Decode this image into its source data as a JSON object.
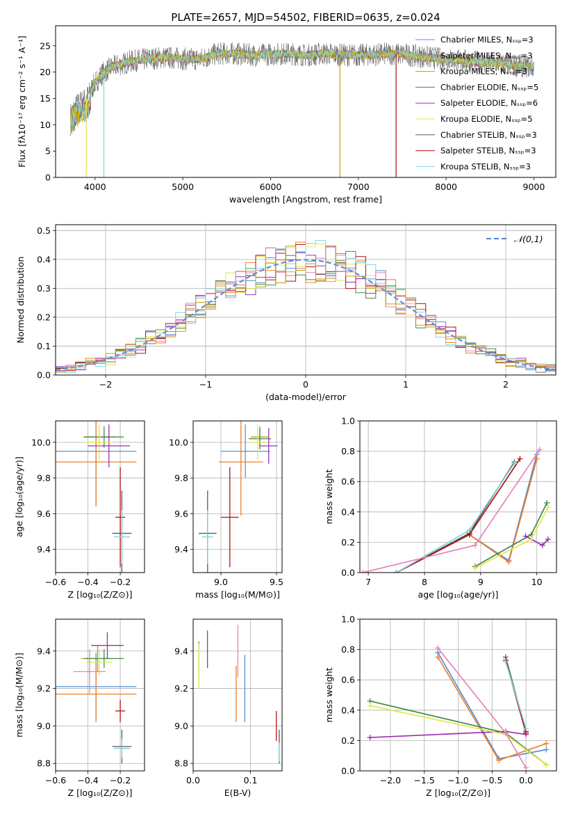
{
  "figure_title": "PLATE=2657, MJD=54502, FIBERID=0635, z=0.024",
  "model_colors": [
    "#5b8fd6",
    "#ee7f24",
    "#c0a000",
    "#3f8a4a",
    "#9b2eb5",
    "#e6e64c",
    "#5a5a5a",
    "#b01111",
    "#7fd5dc"
  ],
  "chart_data": [
    {
      "id": "spectrum",
      "type": "line",
      "title": "PLATE=2657, MJD=54502, FIBERID=0635, z=0.024",
      "xlabel": "wavelength [Angstrom, rest frame]",
      "ylabel": "Flux [fλ10⁻¹⁷ erg cm⁻² s⁻¹ A⁻¹]",
      "xlim": [
        3550,
        9250
      ],
      "ylim": [
        0,
        28.8
      ],
      "xticks": [
        4000,
        5000,
        6000,
        7000,
        8000,
        9000
      ],
      "yticks": [
        0,
        5,
        10,
        15,
        20,
        25
      ],
      "grid": false,
      "legend_position": "top-right",
      "legend": [
        "Chabrier MILES, Nₛₛₚ=3",
        "Salpeter MILES, Nₛₛₚ=3",
        "Kroupa MILES, Nₛₛₚ=3",
        "Chabrier ELODIE, Nₛₛₚ=5",
        "Salpeter ELODIE, Nₛₛₚ=6",
        "Kroupa ELODIE, Nₛₛₚ=5",
        "Chabrier STELIB, Nₛₛₚ=3",
        "Salpeter STELIB, Nₛₛₚ=3",
        "Kroupa STELIB, Nₛₛₚ=3"
      ],
      "continuum_x": [
        3720,
        3800,
        3900,
        4000,
        4100,
        4200,
        4400,
        4600,
        4800,
        5000,
        5200,
        5400,
        5600,
        5800,
        6000,
        6200,
        6400,
        6600,
        6800,
        7000,
        7200,
        7400,
        7600,
        7800,
        8000,
        8200,
        8400,
        8600,
        8800,
        9000
      ],
      "continuum_y": [
        12,
        14,
        15,
        18,
        20,
        21,
        22,
        22.5,
        22.8,
        22.5,
        22.5,
        23.5,
        23.5,
        23.2,
        23.4,
        23.5,
        23.2,
        23.5,
        23.3,
        23.2,
        23.3,
        23.5,
        23.2,
        22.8,
        22.4,
        22.2,
        21.8,
        21.7,
        21.2,
        21.0
      ],
      "model_drops": [
        {
          "series": "Kroupa ELODIE",
          "x": 3900,
          "y": 0
        },
        {
          "series": "Kroupa STELIB",
          "x": 4100,
          "y": 0
        },
        {
          "series": "Kroupa MILES",
          "x": 6790,
          "y": 0
        },
        {
          "series": "Salpeter STELIB",
          "x": 7430,
          "y": 0
        }
      ]
    },
    {
      "id": "residuals",
      "type": "histogram",
      "xlabel": "(data-model)/error",
      "ylabel": "Normed distribution",
      "xlim": [
        -2.5,
        2.5
      ],
      "ylim": [
        0,
        0.52
      ],
      "xticks": [
        -2,
        -1,
        0,
        1,
        2
      ],
      "yticks": [
        0.0,
        0.1,
        0.2,
        0.3,
        0.4,
        0.5
      ],
      "grid": true,
      "legend_position": "top-right",
      "legend": [
        "𝒩(0,1)"
      ],
      "reference_curve": {
        "name": "𝒩(0,1)",
        "mean": 0,
        "sigma": 1
      }
    },
    {
      "id": "age-vs-Z",
      "type": "errorbar",
      "xlabel": "Z [log₁₀(Z/Z⊙)]",
      "ylabel": "age  [log₁₀(age/yr)]",
      "xlim": [
        -0.6,
        -0.05
      ],
      "ylim": [
        9.27,
        10.12
      ],
      "xticks": [
        -0.6,
        -0.4,
        -0.2
      ],
      "yticks": [
        9.4,
        9.6,
        9.8,
        10.0
      ],
      "grid": true,
      "points": [
        {
          "series": 0,
          "x": -0.35,
          "y": 9.95,
          "xerr": 0.25,
          "yerr": 0.3
        },
        {
          "series": 1,
          "x": -0.35,
          "y": 9.89,
          "xerr": 0.25,
          "yerr": 0.25
        },
        {
          "series": 2,
          "x": -0.33,
          "y": 10.03,
          "xerr": 0.1,
          "yerr": 0.06
        },
        {
          "series": 3,
          "x": -0.3,
          "y": 10.03,
          "xerr": 0.12,
          "yerr": 0.06
        },
        {
          "series": 4,
          "x": -0.27,
          "y": 9.98,
          "xerr": 0.13,
          "yerr": 0.12
        },
        {
          "series": 5,
          "x": -0.33,
          "y": 10.0,
          "xerr": 0.08,
          "yerr": 0.1
        },
        {
          "series": 6,
          "x": -0.19,
          "y": 9.49,
          "xerr": 0.06,
          "yerr": 0.24
        },
        {
          "series": 7,
          "x": -0.2,
          "y": 9.58,
          "xerr": 0.03,
          "yerr": 0.28
        },
        {
          "series": 8,
          "x": -0.19,
          "y": 9.47,
          "xerr": 0.05,
          "yerr": 0.15
        }
      ]
    },
    {
      "id": "age-vs-mass",
      "type": "errorbar",
      "xlabel": "mass [log₁₀(M/M⊙)]",
      "ylabel": "",
      "xlim": [
        8.75,
        9.55
      ],
      "ylim": [
        9.27,
        10.12
      ],
      "xticks": [
        9.0,
        9.5
      ],
      "yticks": [
        9.4,
        9.6,
        9.8,
        10.0
      ],
      "grid": true,
      "points": [
        {
          "series": 0,
          "x": 9.22,
          "y": 9.95,
          "xerr": 0.22,
          "yerr": 0.15
        },
        {
          "series": 1,
          "x": 9.18,
          "y": 9.89,
          "xerr": 0.2,
          "yerr": 0.3
        },
        {
          "series": 2,
          "x": 9.35,
          "y": 10.03,
          "xerr": 0.08,
          "yerr": 0.06
        },
        {
          "series": 3,
          "x": 9.35,
          "y": 10.02,
          "xerr": 0.1,
          "yerr": 0.06
        },
        {
          "series": 4,
          "x": 9.43,
          "y": 9.98,
          "xerr": 0.08,
          "yerr": 0.1
        },
        {
          "series": 5,
          "x": 9.33,
          "y": 10.0,
          "xerr": 0.07,
          "yerr": 0.1
        },
        {
          "series": 6,
          "x": 8.88,
          "y": 9.49,
          "xerr": 0.08,
          "yerr": 0.24
        },
        {
          "series": 7,
          "x": 9.08,
          "y": 9.58,
          "xerr": 0.08,
          "yerr": 0.28
        },
        {
          "series": 8,
          "x": 8.88,
          "y": 9.47,
          "xerr": 0.05,
          "yerr": 0.15
        }
      ]
    },
    {
      "id": "mass-weight-vs-age",
      "type": "line",
      "xlabel": "age  [log₁₀(age/yr)]",
      "ylabel": "mass weight",
      "xlim": [
        6.85,
        10.35
      ],
      "ylim": [
        0.0,
        1.0
      ],
      "xticks": [
        7,
        8,
        9,
        10
      ],
      "yticks": [
        0.0,
        0.2,
        0.4,
        0.6,
        0.8,
        1.0
      ],
      "grid": true,
      "series": [
        {
          "series": 0,
          "x": [
            7.5,
            8.8,
            9.5,
            10.0
          ],
          "y": [
            0.0,
            0.25,
            0.08,
            0.78
          ]
        },
        {
          "series": 1,
          "x": [
            7.5,
            8.8,
            9.5,
            10.0
          ],
          "y": [
            0.0,
            0.25,
            0.07,
            0.75
          ]
        },
        {
          "series": 3,
          "x": [
            8.9,
            9.9,
            10.18
          ],
          "y": [
            0.04,
            0.25,
            0.46
          ]
        },
        {
          "series": 4,
          "x": [
            9.8,
            10.1,
            10.2
          ],
          "y": [
            0.24,
            0.18,
            0.22
          ]
        },
        {
          "series": 5,
          "x": [
            8.9,
            9.9,
            10.2
          ],
          "y": [
            0.03,
            0.22,
            0.43
          ]
        },
        {
          "series": 6,
          "x": [
            7.5,
            8.8,
            9.6
          ],
          "y": [
            0.0,
            0.26,
            0.73
          ]
        },
        {
          "series": 7,
          "x": [
            7.5,
            8.8,
            9.7
          ],
          "y": [
            0.0,
            0.25,
            0.75
          ]
        },
        {
          "series": 8,
          "x": [
            7.5,
            8.8,
            9.6
          ],
          "y": [
            0.0,
            0.28,
            0.72
          ]
        },
        {
          "series": 9,
          "x": [
            6.9,
            8.9,
            10.05
          ],
          "y": [
            0.0,
            0.18,
            0.81
          ]
        }
      ]
    },
    {
      "id": "mass-vs-Z",
      "type": "errorbar",
      "xlabel": "Z [log₁₀(Z/Z⊙)]",
      "ylabel": "mass [log₁₀(M/M⊙)]",
      "xlim": [
        -0.6,
        -0.05
      ],
      "ylim": [
        8.76,
        9.57
      ],
      "xticks": [
        -0.6,
        -0.4,
        -0.2
      ],
      "yticks": [
        8.8,
        9.0,
        9.2,
        9.4
      ],
      "grid": true,
      "points": [
        {
          "series": 0,
          "x": -0.35,
          "y": 9.21,
          "xerr": 0.25,
          "yerr": 0.18
        },
        {
          "series": 1,
          "x": -0.35,
          "y": 9.17,
          "xerr": 0.25,
          "yerr": 0.15
        },
        {
          "series": 2,
          "x": -0.34,
          "y": 9.36,
          "xerr": 0.1,
          "yerr": 0.07
        },
        {
          "series": 3,
          "x": -0.3,
          "y": 9.36,
          "xerr": 0.12,
          "yerr": 0.05
        },
        {
          "series": 4,
          "x": -0.28,
          "y": 9.43,
          "xerr": 0.1,
          "yerr": 0.07
        },
        {
          "series": 5,
          "x": -0.33,
          "y": 9.34,
          "xerr": 0.08,
          "yerr": 0.07
        },
        {
          "series": 6,
          "x": -0.19,
          "y": 8.89,
          "xerr": 0.06,
          "yerr": 0.09
        },
        {
          "series": 7,
          "x": -0.2,
          "y": 9.08,
          "xerr": 0.03,
          "yerr": 0.06
        },
        {
          "series": 8,
          "x": -0.19,
          "y": 8.88,
          "xerr": 0.05,
          "yerr": 0.05
        },
        {
          "series": 9,
          "x": -0.39,
          "y": 9.29,
          "xerr": 0.1,
          "yerr": 0.12
        }
      ]
    },
    {
      "id": "mass-vs-ebv",
      "type": "errorbar",
      "xlabel": "E(B-V)",
      "ylabel": "",
      "xlim": [
        0.0,
        0.155
      ],
      "ylim": [
        8.76,
        9.57
      ],
      "xticks": [
        0.0,
        0.1
      ],
      "yticks": [
        8.8,
        9.0,
        9.2,
        9.4
      ],
      "grid": true,
      "points": [
        {
          "series": 0,
          "x": 0.09,
          "y": 9.2,
          "xerr": 0,
          "yerr": 0.18
        },
        {
          "series": 1,
          "x": 0.075,
          "y": 9.17,
          "xerr": 0,
          "yerr": 0.15
        },
        {
          "series": 3,
          "x": 0.01,
          "y": 9.35,
          "xerr": 0,
          "yerr": 0.1
        },
        {
          "series": 4,
          "x": 0.025,
          "y": 9.41,
          "xerr": 0,
          "yerr": 0.1
        },
        {
          "series": 5,
          "x": 0.01,
          "y": 9.32,
          "xerr": 0,
          "yerr": 0.12
        },
        {
          "series": 6,
          "x": 0.15,
          "y": 8.89,
          "xerr": 0,
          "yerr": 0.09
        },
        {
          "series": 7,
          "x": 0.145,
          "y": 9.0,
          "xerr": 0,
          "yerr": 0.08
        },
        {
          "series": 8,
          "x": 0.15,
          "y": 8.86,
          "xerr": 0,
          "yerr": 0.05
        },
        {
          "series": 9,
          "x": 0.078,
          "y": 9.4,
          "xerr": 0,
          "yerr": 0.14
        }
      ]
    },
    {
      "id": "mass-weight-vs-Z",
      "type": "line",
      "xlabel": "Z [log₁₀(Z/Z⊙)]",
      "ylabel": "mass weight",
      "xlim": [
        -2.45,
        0.45
      ],
      "ylim": [
        0.0,
        1.0
      ],
      "xticks": [
        -2.0,
        -1.5,
        -1.0,
        -0.5,
        0.0
      ],
      "yticks": [
        0.0,
        0.2,
        0.4,
        0.6,
        0.8,
        1.0
      ],
      "grid": true,
      "series": [
        {
          "series": 0,
          "x": [
            -1.3,
            -0.4,
            0.3
          ],
          "y": [
            0.78,
            0.08,
            0.14
          ]
        },
        {
          "series": 1,
          "x": [
            -1.3,
            -0.4,
            0.3
          ],
          "y": [
            0.75,
            0.07,
            0.18
          ]
        },
        {
          "series": 3,
          "x": [
            -2.3,
            -0.3,
            0.3
          ],
          "y": [
            0.46,
            0.25,
            0.04
          ]
        },
        {
          "series": 4,
          "x": [
            -2.3,
            -0.3,
            0.0
          ],
          "y": [
            0.22,
            0.26,
            0.24
          ]
        },
        {
          "series": 5,
          "x": [
            -2.3,
            -0.3,
            0.3
          ],
          "y": [
            0.43,
            0.24,
            0.04
          ]
        },
        {
          "series": 6,
          "x": [
            -0.3,
            0.0
          ],
          "y": [
            0.75,
            0.26
          ]
        },
        {
          "series": 7,
          "x": [
            -0.3,
            0.0
          ],
          "y": [
            0.73,
            0.25
          ]
        },
        {
          "series": 8,
          "x": [
            -0.3,
            0.0
          ],
          "y": [
            0.72,
            0.28
          ]
        },
        {
          "series": 9,
          "x": [
            -1.3,
            -0.3,
            0.0
          ],
          "y": [
            0.81,
            0.25,
            0.02
          ]
        }
      ]
    }
  ]
}
